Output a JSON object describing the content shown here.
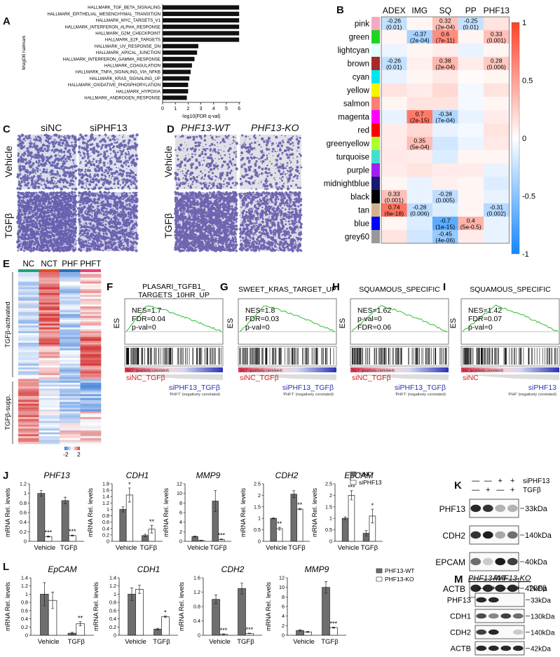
{
  "panels": {
    "A": {
      "label": "A",
      "ylabel": "MsigDB hallmark",
      "xlabel": "-log10(FDR q-val)",
      "ticks": [
        0,
        1,
        2,
        3,
        4,
        5,
        6
      ],
      "bars": [
        {
          "name": "HALLMARK_TGF_BETA_SIGNALING",
          "value": 6.0
        },
        {
          "name": "HALLMARK_EPITHELIAL_MESENCHYMAL_TRANSITION",
          "value": 6.0
        },
        {
          "name": "HALLMARK_MYC_TARGETS_V1",
          "value": 6.0
        },
        {
          "name": "HALLMARK_INTERFERON_ALPHA_RESPONSE",
          "value": 6.0
        },
        {
          "name": "HALLMARK_G2M_CHECKPOINT",
          "value": 6.0
        },
        {
          "name": "HALLMARK_E2F_TARGETS",
          "value": 6.0
        },
        {
          "name": "HALLMARK_UV_RESPONSE_DN",
          "value": 2.8
        },
        {
          "name": "HALLMARK_APICAL_JUNCTION",
          "value": 2.7
        },
        {
          "name": "HALLMARK_INTERFERON_GAMMA_RESPONSE",
          "value": 2.5
        },
        {
          "name": "HALLMARK_COAGULATION",
          "value": 2.3
        },
        {
          "name": "HALLMARK_TNFA_SIGNALING_VIA_NFKB",
          "value": 2.2
        },
        {
          "name": "HALLMARK_KRAS_SIGNALING_UP",
          "value": 2.1
        },
        {
          "name": "HALLMARK_OXIDATIVE_PHOSPHORYLATION",
          "value": 2.0
        },
        {
          "name": "HALLMARK_HYPOXIA",
          "value": 2.0
        },
        {
          "name": "HALLMARK_ANDROGEN_RESPONSE",
          "value": 1.9
        }
      ]
    },
    "B": {
      "label": "B",
      "columns": [
        "ADEX",
        "IMG",
        "SQ",
        "PP",
        "PHF13"
      ],
      "rows": [
        {
          "name": "pink",
          "color": "#f7a8c4"
        },
        {
          "name": "green",
          "color": "#1fd421"
        },
        {
          "name": "lightcyan",
          "color": "#e0ffff"
        },
        {
          "name": "brown",
          "color": "#a52a2a"
        },
        {
          "name": "cyan",
          "color": "#00e5ee"
        },
        {
          "name": "yellow",
          "color": "#f5f500"
        },
        {
          "name": "salmon",
          "color": "#fa8072"
        },
        {
          "name": "magenta",
          "color": "#ff00ff"
        },
        {
          "name": "red",
          "color": "#ff0000"
        },
        {
          "name": "greenyellow",
          "color": "#adff2f"
        },
        {
          "name": "turquoise",
          "color": "#40e0d0"
        },
        {
          "name": "purple",
          "color": "#a020f0"
        },
        {
          "name": "midnightblue",
          "color": "#191970"
        },
        {
          "name": "black",
          "color": "#000000"
        },
        {
          "name": "tan",
          "color": "#d2b48c"
        },
        {
          "name": "blue",
          "color": "#0000ff"
        },
        {
          "name": "grey60",
          "color": "#999999"
        }
      ],
      "values": [
        [
          -0.26,
          0.05,
          0.32,
          -0.25,
          0.15
        ],
        [
          0.05,
          -0.37,
          0.6,
          0.05,
          0.33
        ],
        [
          -0.08,
          0.05,
          0.1,
          -0.1,
          0.05
        ],
        [
          -0.26,
          0.08,
          0.38,
          0.1,
          0.28
        ],
        [
          -0.1,
          0.05,
          0.12,
          0.02,
          0.05
        ],
        [
          0.15,
          0.1,
          0.2,
          -0.05,
          0.15
        ],
        [
          0.05,
          0.15,
          0.15,
          -0.05,
          0.05
        ],
        [
          -0.1,
          0.7,
          -0.34,
          -0.1,
          0.1
        ],
        [
          0.1,
          0.2,
          -0.1,
          -0.05,
          0.15
        ],
        [
          0.1,
          0.35,
          -0.2,
          -0.08,
          0.12
        ],
        [
          0.12,
          0.1,
          -0.15,
          0.05,
          0.05
        ],
        [
          0.1,
          0.15,
          0.1,
          0.1,
          -0.1
        ],
        [
          0.05,
          -0.1,
          0.08,
          0.05,
          -0.15
        ],
        [
          0.33,
          -0.1,
          -0.28,
          0.05,
          -0.1
        ],
        [
          0.74,
          -0.28,
          -0.15,
          0.05,
          -0.31
        ],
        [
          0.05,
          -0.15,
          -0.7,
          0.4,
          -0.1
        ],
        [
          0.15,
          -0.2,
          -0.45,
          0.1,
          -0.1
        ]
      ],
      "annotations": [
        {
          "r": 0,
          "c": 0,
          "v": "-0.26",
          "p": "(0.01)"
        },
        {
          "r": 0,
          "c": 2,
          "v": "0.32",
          "p": "(2e-04)"
        },
        {
          "r": 0,
          "c": 3,
          "v": "-0.25",
          "p": "(0.01)"
        },
        {
          "r": 1,
          "c": 1,
          "v": "-0.37",
          "p": "(2e-04)"
        },
        {
          "r": 1,
          "c": 2,
          "v": "0.6",
          "p": "(7e-11)"
        },
        {
          "r": 1,
          "c": 4,
          "v": "0.33",
          "p": "(0.001)"
        },
        {
          "r": 3,
          "c": 0,
          "v": "-0.26",
          "p": "(0.01)"
        },
        {
          "r": 3,
          "c": 2,
          "v": "0.38",
          "p": "(2e-04)"
        },
        {
          "r": 3,
          "c": 4,
          "v": "0.28",
          "p": "(0.006)"
        },
        {
          "r": 7,
          "c": 1,
          "v": "0.7",
          "p": "(2e-15)"
        },
        {
          "r": 7,
          "c": 2,
          "v": "-0.34",
          "p": "(7e-04)"
        },
        {
          "r": 9,
          "c": 1,
          "v": "0.35",
          "p": "(5e-04)"
        },
        {
          "r": 13,
          "c": 0,
          "v": "0.33",
          "p": "(0.001)"
        },
        {
          "r": 13,
          "c": 2,
          "v": "-0.28",
          "p": "(0.005)"
        },
        {
          "r": 14,
          "c": 0,
          "v": "0.74",
          "p": "(6e-18)"
        },
        {
          "r": 14,
          "c": 1,
          "v": "-0.28",
          "p": "(0.006)"
        },
        {
          "r": 14,
          "c": 4,
          "v": "-0.31",
          "p": "(0.002)"
        },
        {
          "r": 15,
          "c": 2,
          "v": "-0.7",
          "p": "(1e-15)"
        },
        {
          "r": 15,
          "c": 3,
          "v": "0.4",
          "p": "(5e-0.5)"
        },
        {
          "r": 16,
          "c": 2,
          "v": "-0.45",
          "p": "(4e-06)"
        }
      ],
      "scale_ticks": [
        "1",
        "0.5",
        "0",
        "-0.5",
        "-1"
      ]
    },
    "C": {
      "label": "C",
      "col_labels": [
        "siNC",
        "siPHF13"
      ],
      "row_labels": [
        "Vehicle",
        "TGFβ"
      ]
    },
    "D": {
      "label": "D",
      "col_labels": [
        "PHF13-WT",
        "PHF13-KO"
      ],
      "row_labels": [
        "Vehicle",
        "TGFβ"
      ]
    },
    "E": {
      "label": "E",
      "col_labels": [
        "NC",
        "NCT",
        "PHF",
        "PHFT"
      ],
      "row_labels": [
        "TGFβ-activated",
        "TGFβ-supp."
      ],
      "scale": [
        "-2",
        "2"
      ]
    },
    "gsea": [
      {
        "label": "F",
        "title": [
          "PLASARI_TGFB1_",
          "TARGETS_10HR_UP"
        ],
        "stats": [
          "NES=1.7",
          "FDR=0.04",
          "p-val=0"
        ],
        "pos": "siNC_TGFβ",
        "neg": "siPHF13_TGFβ",
        "pos_small": "'NCT' (positively correlated)",
        "neg_small": "'PHFT' (negatively correlated)"
      },
      {
        "label": "G",
        "title": [
          "SWEET_KRAS_TARGET_UP"
        ],
        "stats": [
          "NES=1.8",
          "FDR=0.03",
          "p-val=0"
        ],
        "pos": "siNC_TGFβ",
        "neg": "siPHF13_TGFβ",
        "pos_small": "'NCT' (positively correlated)",
        "neg_small": "'PHFT' (negatively correlated)"
      },
      {
        "label": "H",
        "title": [
          "SQUAMOUS_SPECIFIC"
        ],
        "stats": [
          "NES=1.62",
          "p-val=0",
          "FDR=0.06"
        ],
        "pos": "siNC_TGFβ",
        "neg": "siPHF13_TGFβ",
        "pos_small": "'NCT' (positively correlated)",
        "neg_small": "'PHFT' (negatively correlated)"
      },
      {
        "label": "I",
        "title": [
          "SQUAMOUS_SPECIFIC"
        ],
        "stats": [
          "NES=1.42",
          "FDR=0.07",
          "p-val=0"
        ],
        "pos": "siNC",
        "neg": "siPHF13",
        "pos_small": "'NC' (positively correlated)",
        "neg_small": "'PHF' (negatively correlated)"
      }
    ],
    "J": {
      "label": "J",
      "ylabel": "mRNA Rel. levels",
      "groups": [
        "Vehicle",
        "TGFβ"
      ],
      "legend": [
        "siNC",
        "siPHF13"
      ],
      "genes": [
        {
          "name": "PHF13",
          "ymax": 1.2,
          "ticks": [
            "0",
            "0.2",
            "0.4",
            "0.6",
            "0.8",
            "1",
            "1.2"
          ],
          "vals": [
            [
              1.0,
              0.1
            ],
            [
              0.85,
              0.12
            ]
          ],
          "err": [
            [
              0.06,
              0.01
            ],
            [
              0.07,
              0.01
            ]
          ],
          "sig": [
            "***",
            "***"
          ]
        },
        {
          "name": "CDH1",
          "ymax": 1.8,
          "ticks": [
            "0",
            "0.2",
            "0.4",
            "0.6",
            "0.8",
            "1",
            "1.2",
            "1.4",
            "1.6",
            "1.8"
          ],
          "vals": [
            [
              1.0,
              1.45
            ],
            [
              0.18,
              0.38
            ]
          ],
          "err": [
            [
              0.08,
              0.22
            ],
            [
              0.04,
              0.12
            ]
          ],
          "sig": [
            "*",
            "**"
          ]
        },
        {
          "name": "MMP9",
          "ymax": 12,
          "ticks": [
            "0",
            "2",
            "4",
            "6",
            "8",
            "10",
            "12"
          ],
          "vals": [
            [
              1.0,
              0.2
            ],
            [
              8.4,
              0.4
            ]
          ],
          "err": [
            [
              0.1,
              0.05
            ],
            [
              2.2,
              0.1
            ]
          ],
          "sig": [
            "",
            "***"
          ]
        },
        {
          "name": "CDH2",
          "ymax": 2.5,
          "ticks": [
            "0",
            "0.5",
            "1",
            "1.5",
            "2",
            "2.5"
          ],
          "vals": [
            [
              1.0,
              0.55
            ],
            [
              2.05,
              1.4
            ]
          ],
          "err": [
            [
              0.02,
              0.06
            ],
            [
              0.15,
              0.03
            ]
          ],
          "sig": [
            "**",
            "**"
          ]
        },
        {
          "name": "EpCAM",
          "ymax": 2.5,
          "ticks": [
            "0",
            "0.5",
            "1",
            "1.5",
            "2",
            "2.5"
          ],
          "vals": [
            [
              1.0,
              2.0
            ],
            [
              0.35,
              1.1
            ]
          ],
          "err": [
            [
              0.06,
              0.2
            ],
            [
              0.12,
              0.3
            ]
          ],
          "sig": [
            "***",
            "*"
          ]
        }
      ]
    },
    "K": {
      "label": "K",
      "cond_rows": [
        {
          "name": "siPHF13",
          "marks": [
            "—",
            "—",
            "+",
            "+"
          ]
        },
        {
          "name": "TGFβ",
          "marks": [
            "—",
            "+",
            "—",
            "+"
          ]
        }
      ],
      "blots": [
        {
          "name": "PHF13",
          "size": "33kDa",
          "bands": [
            0.9,
            0.85,
            0.3,
            0.3
          ]
        },
        {
          "name": "CDH2",
          "size": "140kDa",
          "bands": [
            0.85,
            0.95,
            0.35,
            0.6
          ]
        },
        {
          "name": "EPCAM",
          "size": "40kDa",
          "bands": [
            0.6,
            0.2,
            0.95,
            0.8
          ]
        },
        {
          "name": "ACTB",
          "size": "42kDa",
          "bands": [
            0.9,
            0.9,
            0.9,
            0.9
          ]
        }
      ]
    },
    "L": {
      "label": "L",
      "ylabel": "mRNA Rel. levels",
      "groups": [
        "Vehicle",
        "TGFβ"
      ],
      "legend": [
        "PHF13-WT",
        "PHF13-KO"
      ],
      "genes": [
        {
          "name": "EpCAM",
          "ymax": 1.4,
          "ticks": [
            "0",
            "0.2",
            "0.4",
            "0.6",
            "0.8",
            "1",
            "1.2",
            "1.4"
          ],
          "vals": [
            [
              1.0,
              0.85
            ],
            [
              0.05,
              0.28
            ]
          ],
          "err": [
            [
              0.28,
              0.2
            ],
            [
              0.02,
              0.05
            ]
          ],
          "sig": [
            "",
            "**"
          ]
        },
        {
          "name": "CDH1",
          "ymax": 1.4,
          "ticks": [
            "0",
            "0.2",
            "0.4",
            "0.6",
            "0.8",
            "1",
            "1.2",
            "1.4"
          ],
          "vals": [
            [
              1.0,
              1.12
            ],
            [
              0.15,
              0.45
            ]
          ],
          "err": [
            [
              0.15,
              0.1
            ],
            [
              0.02,
              0.02
            ]
          ],
          "sig": [
            "",
            "*"
          ]
        },
        {
          "name": "CDH2",
          "ymax": 1.6,
          "ticks": [
            "0",
            "0.4",
            "0.8",
            "1.2",
            "1.6"
          ],
          "vals": [
            [
              1.0,
              0.03
            ],
            [
              1.3,
              0.05
            ]
          ],
          "err": [
            [
              0.12,
              0.01
            ],
            [
              0.15,
              0.01
            ]
          ],
          "sig": [
            "***",
            "***"
          ]
        },
        {
          "name": "MMP9",
          "ymax": 12,
          "ticks": [
            "0",
            "2",
            "4",
            "6",
            "8",
            "10",
            "12"
          ],
          "vals": [
            [
              1.0,
              0.7
            ],
            [
              10.0,
              1.6
            ]
          ],
          "err": [
            [
              0.15,
              0.1
            ],
            [
              1.2,
              0.1
            ]
          ],
          "sig": [
            "",
            "***"
          ]
        }
      ]
    },
    "M": {
      "label": "M",
      "col_groups": [
        "PHF13-WT",
        "PHF13-KO"
      ],
      "marks": [
        "—",
        "+",
        "—",
        "+"
      ],
      "cond": "TGFβ",
      "blots": [
        {
          "name": "PHF13",
          "size": "33kDa",
          "bands": [
            0.9,
            0.9,
            0.0,
            0.0
          ]
        },
        {
          "name": "CDH1",
          "size": "130kDa",
          "bands": [
            0.75,
            0.5,
            0.8,
            0.6
          ]
        },
        {
          "name": "CDH2",
          "size": "140kDa",
          "bands": [
            0.8,
            0.9,
            0.0,
            0.2
          ]
        },
        {
          "name": "ACTB",
          "size": "42kDa",
          "bands": [
            0.9,
            0.9,
            0.9,
            0.9
          ]
        }
      ]
    }
  }
}
